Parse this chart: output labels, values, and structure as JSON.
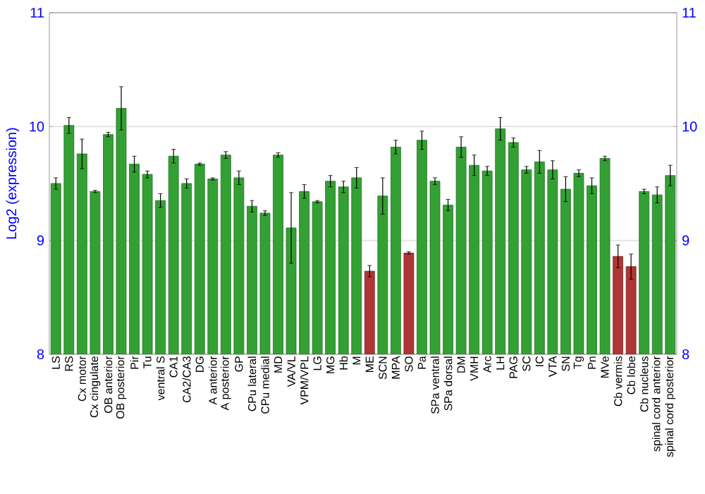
{
  "chart_data": {
    "type": "bar",
    "ylabel": "Log2 (expression)",
    "categories": [
      "LS",
      "RS",
      "Cx motor",
      "Cx cingulate",
      "OB anterior",
      "OB posterior",
      "Pir",
      "Tu",
      "ventral S",
      "CA1",
      "CA2/CA3",
      "DG",
      "A anterior",
      "A posterior",
      "GP",
      "CPu lateral",
      "CPu medial",
      "MD",
      "VA/VL",
      "VPM/VPL",
      "LG",
      "MG",
      "Hb",
      "M",
      "ME",
      "SCN",
      "MPA",
      "SO",
      "Pa",
      "SPa ventral",
      "SPa dorsal",
      "DM",
      "VMH",
      "Arc",
      "LH",
      "PAG",
      "SC",
      "IC",
      "VTA",
      "SN",
      "Tg",
      "Pn",
      "MVe",
      "Cb vermis",
      "Cb lobe",
      "Cb nucleus",
      "spinal cord anterior",
      "spinal cord posterior"
    ],
    "values": [
      9.5,
      10.01,
      9.76,
      9.43,
      9.93,
      10.16,
      9.67,
      9.58,
      9.35,
      9.74,
      9.5,
      9.67,
      9.54,
      9.75,
      9.55,
      9.3,
      9.24,
      9.75,
      9.11,
      9.43,
      9.34,
      9.52,
      9.47,
      9.55,
      8.73,
      9.39,
      9.82,
      8.89,
      9.88,
      9.52,
      9.31,
      9.82,
      9.66,
      9.61,
      9.98,
      9.86,
      9.62,
      9.69,
      9.62,
      9.45,
      9.59,
      9.48,
      9.72,
      8.86,
      8.77,
      9.43,
      9.4,
      9.57
    ],
    "errors": [
      0.05,
      0.07,
      0.13,
      0.01,
      0.02,
      0.19,
      0.07,
      0.03,
      0.06,
      0.06,
      0.04,
      0.01,
      0.01,
      0.03,
      0.06,
      0.05,
      0.02,
      0.02,
      0.31,
      0.06,
      0.01,
      0.05,
      0.05,
      0.09,
      0.05,
      0.16,
      0.06,
      0.01,
      0.08,
      0.03,
      0.05,
      0.09,
      0.09,
      0.04,
      0.1,
      0.04,
      0.03,
      0.1,
      0.08,
      0.11,
      0.03,
      0.07,
      0.02,
      0.1,
      0.11,
      0.02,
      0.07,
      0.09
    ],
    "colors": [
      "#33a033",
      "#33a033",
      "#33a033",
      "#33a033",
      "#33a033",
      "#33a033",
      "#33a033",
      "#33a033",
      "#33a033",
      "#33a033",
      "#33a033",
      "#33a033",
      "#33a033",
      "#33a033",
      "#33a033",
      "#33a033",
      "#33a033",
      "#33a033",
      "#33a033",
      "#33a033",
      "#33a033",
      "#33a033",
      "#33a033",
      "#33a033",
      "#b03535",
      "#33a033",
      "#33a033",
      "#b03535",
      "#33a033",
      "#33a033",
      "#33a033",
      "#33a033",
      "#33a033",
      "#33a033",
      "#33a033",
      "#33a033",
      "#33a033",
      "#33a033",
      "#33a033",
      "#33a033",
      "#33a033",
      "#33a033",
      "#33a033",
      "#b03535",
      "#b03535",
      "#33a033",
      "#33a033",
      "#33a033"
    ],
    "ylim": [
      8,
      11
    ],
    "yticks": [
      8,
      9,
      10,
      11
    ],
    "y2lim": [
      8,
      11
    ],
    "y2ticks": [
      8,
      9,
      10,
      11
    ],
    "grid": "y"
  }
}
